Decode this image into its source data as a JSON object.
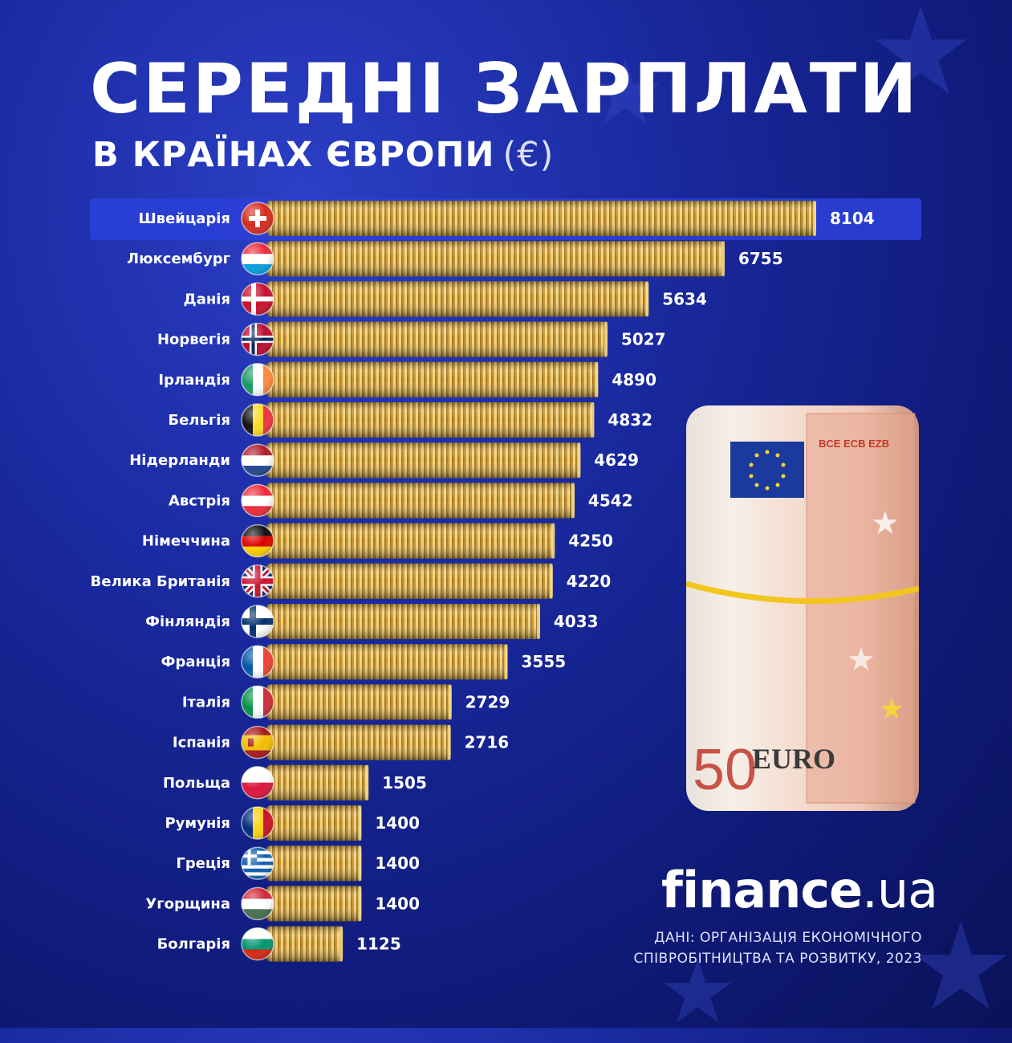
{
  "title": "СЕРЕДНІ ЗАРПЛАТИ",
  "subtitle": "В КРАЇНАХ ЄВРОПИ",
  "currency": "(€)",
  "logo": {
    "name": "finance",
    "domain": ".ua"
  },
  "source": {
    "line1": "ДАНІ: ОРГАНІЗАЦІЯ ЕКОНОМІЧНОГО",
    "line2": "СПІВРОБІТНИЦТВА ТА РОЗВИТКУ, 2023"
  },
  "money_roll": {
    "denomination": "50",
    "label": "EURO",
    "serial_text": "BCE ECB EZB"
  },
  "colors": {
    "background": "#1a2aa0",
    "bar_gold": "#d8a93a",
    "highlight_row": "#2a3fd6",
    "text": "#ffffff"
  },
  "chart_data": {
    "type": "bar",
    "orientation": "horizontal",
    "title": "СЕРЕДНІ ЗАРПЛАТИ",
    "subtitle": "В КРАЇНАХ ЄВРОПИ (€)",
    "xlabel": "",
    "ylabel": "",
    "xlim": [
      0,
      8104
    ],
    "grid": false,
    "highlight": "Швейцарія",
    "categories": [
      "Швейцарія",
      "Люксембург",
      "Данія",
      "Норвегія",
      "Ірландія",
      "Бельгія",
      "Нідерланди",
      "Австрія",
      "Німеччина",
      "Велика Британія",
      "Фінляндія",
      "Франція",
      "Італія",
      "Іспанія",
      "Польща",
      "Румунія",
      "Греція",
      "Угорщина",
      "Болгарія"
    ],
    "values": [
      8104,
      6755,
      5634,
      5027,
      4890,
      4832,
      4629,
      4542,
      4250,
      4220,
      4033,
      3555,
      2729,
      2716,
      1505,
      1400,
      1400,
      1400,
      1125
    ],
    "flags": [
      "swiss",
      "luxembourg",
      "denmark",
      "norway",
      "ireland",
      "belgium",
      "netherlands",
      "austria",
      "germany",
      "uk",
      "finland",
      "france",
      "italy",
      "spain",
      "poland",
      "romania",
      "greece",
      "hungary",
      "bulgaria"
    ]
  }
}
